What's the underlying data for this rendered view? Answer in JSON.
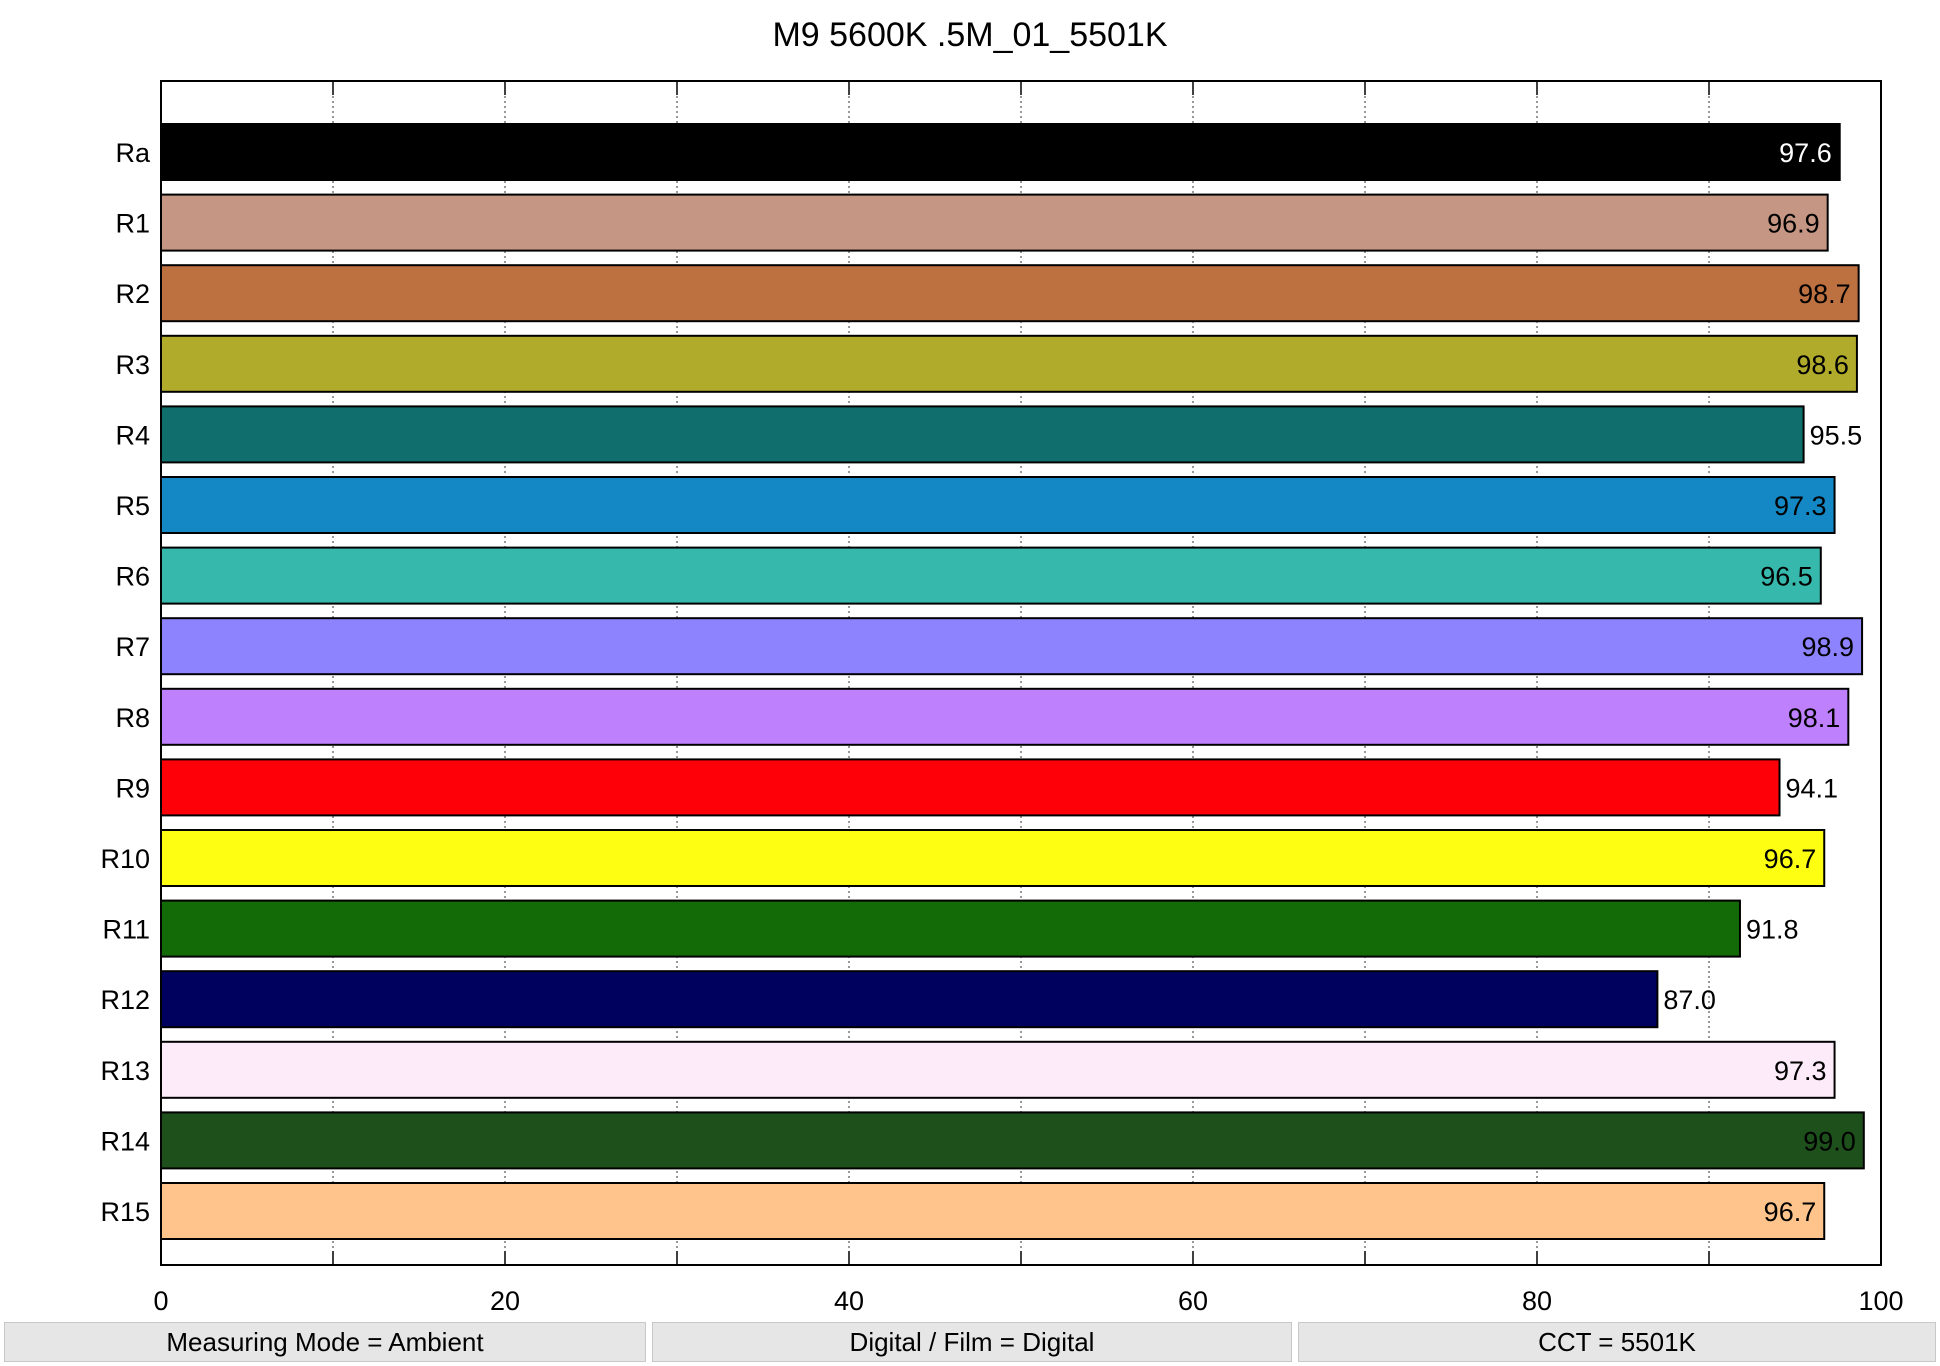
{
  "chart_data": {
    "type": "bar",
    "orientation": "horizontal",
    "title": "M9 5600K .5M_01_5501K",
    "xlabel": "",
    "ylabel": "",
    "xlim": [
      0,
      100
    ],
    "x_ticks": [
      0,
      20,
      40,
      60,
      80,
      100
    ],
    "grid": "dotted vertical lines every 10",
    "categories": [
      "Ra",
      "R1",
      "R2",
      "R3",
      "R4",
      "R5",
      "R6",
      "R7",
      "R8",
      "R9",
      "R10",
      "R11",
      "R12",
      "R13",
      "R14",
      "R15"
    ],
    "values": [
      97.6,
      96.9,
      98.7,
      98.6,
      95.5,
      97.3,
      96.5,
      98.9,
      98.1,
      94.1,
      96.7,
      91.8,
      87.0,
      97.3,
      99.0,
      96.7
    ],
    "value_labels": [
      "97.6",
      "96.9",
      "98.7",
      "98.6",
      "95.5",
      "97.3",
      "96.5",
      "98.9",
      "98.1",
      "94.1",
      "96.7",
      "91.8",
      "87.0",
      "97.3",
      "99.0",
      "96.7"
    ],
    "colors": [
      "#000000",
      "#c49683",
      "#bd7040",
      "#b1ab2c",
      "#106f6c",
      "#1388c4",
      "#36b8ad",
      "#8d83fe",
      "#bf80fe",
      "#fe0008",
      "#fefe13",
      "#126b07",
      "#00005e",
      "#feebf9",
      "#1d501b",
      "#fec48c"
    ],
    "label_colors": [
      "#ffffff",
      "#000000",
      "#000000",
      "#000000",
      "#000000",
      "#000000",
      "#000000",
      "#000000",
      "#000000",
      "#000000",
      "#000000",
      "#000000",
      "#000000",
      "#000000",
      "#000000",
      "#000000"
    ]
  },
  "footer": {
    "measuring_mode": "Measuring Mode = Ambient",
    "digital_film": "Digital / Film = Digital",
    "cct": "CCT = 5501K"
  }
}
